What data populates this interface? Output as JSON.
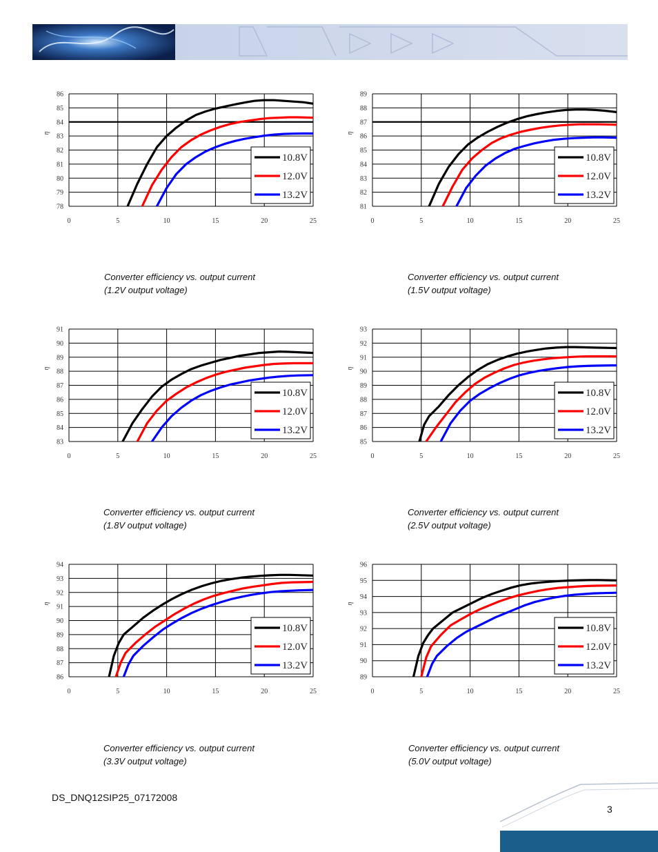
{
  "document": {
    "doc_id": "DS_DNQ12SIP25_07172008",
    "page_number": "3"
  },
  "colors": {
    "v108": "#000000",
    "v120": "#ff0000",
    "v132": "#0000ff",
    "brand": "#1a5e8c"
  },
  "chart_data": [
    {
      "type": "line",
      "title": "Converter efficiency vs. output current",
      "subtitle": "(1.2V output voltage)",
      "ylabel": "η",
      "xlabel": "",
      "xlim": [
        0,
        25
      ],
      "ylim": [
        78,
        86
      ],
      "xticks": [
        "0",
        "5",
        "10",
        "15",
        "20",
        "25"
      ],
      "yticks": [
        "78",
        "79",
        "80",
        "81",
        "82",
        "83",
        "84",
        "85",
        "86"
      ],
      "hline": 84,
      "series": [
        {
          "name": "10.8V",
          "x": [
            6,
            7,
            8,
            9,
            10,
            11,
            12,
            13,
            14,
            15,
            16,
            17,
            18,
            19,
            20,
            21,
            22,
            23,
            24,
            25
          ],
          "y": [
            78,
            79.6,
            81,
            82.2,
            83,
            83.6,
            84.1,
            84.5,
            84.75,
            84.95,
            85.1,
            85.25,
            85.38,
            85.5,
            85.55,
            85.55,
            85.5,
            85.45,
            85.4,
            85.3
          ]
        },
        {
          "name": "12.0V",
          "x": [
            7.5,
            8.5,
            9.5,
            10.5,
            11.5,
            12.5,
            13.5,
            14.5,
            15.5,
            16.5,
            17.5,
            18.5,
            19.5,
            20.5,
            21.5,
            22.5,
            23.5,
            25
          ],
          "y": [
            78,
            79.5,
            80.6,
            81.5,
            82.2,
            82.7,
            83.1,
            83.4,
            83.65,
            83.85,
            84,
            84.1,
            84.2,
            84.27,
            84.3,
            84.33,
            84.33,
            84.3
          ]
        },
        {
          "name": "13.2V",
          "x": [
            9,
            10,
            11,
            12,
            13,
            14,
            15,
            16,
            17,
            18,
            19,
            20,
            21,
            22,
            23,
            24,
            25
          ],
          "y": [
            78,
            79.3,
            80.3,
            81,
            81.5,
            81.9,
            82.2,
            82.45,
            82.65,
            82.8,
            82.92,
            83.02,
            83.1,
            83.15,
            83.17,
            83.18,
            83.18
          ]
        }
      ]
    },
    {
      "type": "line",
      "title": "Converter efficiency vs. output current",
      "subtitle": "(1.5V output voltage)",
      "ylabel": "η",
      "xlabel": "",
      "xlim": [
        0,
        25
      ],
      "ylim": [
        81,
        89
      ],
      "xticks": [
        "0",
        "5",
        "10",
        "15",
        "20",
        "25"
      ],
      "yticks": [
        "81",
        "82",
        "83",
        "84",
        "85",
        "86",
        "87",
        "88",
        "89"
      ],
      "hline": 87,
      "series": [
        {
          "name": "10.8V",
          "x": [
            5.8,
            6.8,
            7.8,
            8.8,
            9.8,
            10.8,
            11.8,
            12.8,
            13.8,
            14.8,
            15.8,
            16.8,
            17.8,
            18.8,
            19.8,
            20.8,
            21.8,
            22.8,
            23.8,
            25
          ],
          "y": [
            81,
            82.6,
            83.8,
            84.7,
            85.4,
            85.9,
            86.3,
            86.65,
            86.95,
            87.2,
            87.4,
            87.55,
            87.68,
            87.78,
            87.85,
            87.88,
            87.88,
            87.85,
            87.8,
            87.7
          ]
        },
        {
          "name": "12.0V",
          "x": [
            7.2,
            8.2,
            9.2,
            10.2,
            11.2,
            12.2,
            13.2,
            14.2,
            15.2,
            16.2,
            17.2,
            18.2,
            19.2,
            20.2,
            21.2,
            22.2,
            23.2,
            25
          ],
          "y": [
            81,
            82.4,
            83.6,
            84.4,
            85,
            85.5,
            85.85,
            86.1,
            86.3,
            86.45,
            86.58,
            86.68,
            86.75,
            86.8,
            86.83,
            86.83,
            86.83,
            86.8
          ]
        },
        {
          "name": "13.2V",
          "x": [
            8.6,
            9.6,
            10.6,
            11.6,
            12.6,
            13.6,
            14.6,
            15.6,
            16.6,
            17.6,
            18.6,
            19.6,
            20.6,
            21.6,
            22.6,
            23.6,
            25
          ],
          "y": [
            81,
            82.3,
            83.2,
            83.9,
            84.4,
            84.8,
            85.1,
            85.3,
            85.48,
            85.62,
            85.73,
            85.8,
            85.85,
            85.88,
            85.9,
            85.9,
            85.88
          ]
        }
      ]
    },
    {
      "type": "line",
      "title": "Converter efficiency vs. output current",
      "subtitle": "(1.8V output voltage)",
      "ylabel": "η",
      "xlabel": "",
      "xlim": [
        0,
        25
      ],
      "ylim": [
        83,
        91
      ],
      "xticks": [
        "0",
        "5",
        "10",
        "15",
        "20",
        "25"
      ],
      "yticks": [
        "83",
        "84",
        "85",
        "86",
        "87",
        "88",
        "89",
        "90",
        "91"
      ],
      "hline": null,
      "series": [
        {
          "name": "10.8V",
          "x": [
            5.5,
            6.5,
            7.5,
            8.5,
            9.5,
            10.5,
            11.5,
            12.5,
            13.5,
            14.5,
            15.5,
            16.5,
            17.5,
            18.5,
            19.5,
            20.5,
            21.5,
            22.5,
            23.5,
            25
          ],
          "y": [
            83,
            84.3,
            85.3,
            86.2,
            86.9,
            87.4,
            87.8,
            88.15,
            88.4,
            88.6,
            88.8,
            88.95,
            89.1,
            89.2,
            89.3,
            89.35,
            89.4,
            89.38,
            89.35,
            89.3
          ]
        },
        {
          "name": "12.0V",
          "x": [
            7,
            8,
            9,
            10,
            11,
            12,
            13,
            14,
            15,
            16,
            17,
            18,
            19,
            20,
            21,
            22,
            23,
            25
          ],
          "y": [
            83,
            84.3,
            85.2,
            85.9,
            86.4,
            86.85,
            87.2,
            87.5,
            87.75,
            87.95,
            88.1,
            88.25,
            88.35,
            88.45,
            88.52,
            88.55,
            88.57,
            88.57
          ]
        },
        {
          "name": "13.2V",
          "x": [
            8.5,
            9.5,
            10.5,
            11.5,
            12.5,
            13.5,
            14.5,
            15.5,
            16.5,
            17.5,
            18.5,
            19.5,
            20.5,
            21.5,
            22.5,
            23.5,
            25
          ],
          "y": [
            83,
            84,
            84.8,
            85.4,
            85.9,
            86.3,
            86.6,
            86.85,
            87.05,
            87.2,
            87.35,
            87.45,
            87.55,
            87.62,
            87.67,
            87.7,
            87.72
          ]
        }
      ]
    },
    {
      "type": "line",
      "title": "Converter efficiency vs. output current",
      "subtitle": "(2.5V output voltage)",
      "ylabel": "η",
      "xlabel": "",
      "xlim": [
        0,
        25
      ],
      "ylim": [
        85,
        93
      ],
      "xticks": [
        "0",
        "5",
        "10",
        "15",
        "20",
        "25"
      ],
      "yticks": [
        "85",
        "86",
        "87",
        "88",
        "89",
        "90",
        "91",
        "92",
        "93"
      ],
      "hline": null,
      "series": [
        {
          "name": "10.8V",
          "x": [
            4.8,
            5.3,
            5.8,
            6.8,
            7.8,
            8.8,
            9.8,
            10.8,
            11.8,
            12.8,
            13.8,
            14.8,
            15.8,
            16.8,
            17.8,
            18.8,
            19.8,
            20.8,
            21.8,
            22.8,
            25
          ],
          "y": [
            85,
            86.2,
            86.8,
            87.5,
            88.3,
            89,
            89.6,
            90.1,
            90.5,
            90.8,
            91.05,
            91.25,
            91.4,
            91.52,
            91.62,
            91.68,
            91.72,
            91.72,
            91.7,
            91.68,
            91.65
          ]
        },
        {
          "name": "12.0V",
          "x": [
            5.5,
            6.5,
            7.5,
            8.5,
            9.5,
            10.5,
            11.5,
            12.5,
            13.5,
            14.5,
            15.5,
            16.5,
            17.5,
            18.5,
            19.5,
            20.5,
            21.5,
            22.5,
            23.5,
            25
          ],
          "y": [
            85,
            86,
            86.9,
            87.8,
            88.5,
            89.1,
            89.55,
            89.9,
            90.2,
            90.45,
            90.62,
            90.75,
            90.85,
            90.93,
            90.98,
            91.02,
            91.05,
            91.06,
            91.06,
            91.05
          ]
        },
        {
          "name": "13.2V",
          "x": [
            7,
            8,
            9,
            10,
            11,
            12,
            13,
            14,
            15,
            16,
            17,
            18,
            19,
            20,
            21,
            22,
            23,
            25
          ],
          "y": [
            85,
            86.3,
            87.2,
            87.9,
            88.4,
            88.8,
            89.15,
            89.45,
            89.7,
            89.88,
            90.02,
            90.13,
            90.22,
            90.3,
            90.35,
            90.38,
            90.4,
            90.42
          ]
        }
      ]
    },
    {
      "type": "line",
      "title": "Converter efficiency vs. output current",
      "subtitle": "(3.3V output voltage)",
      "ylabel": "η",
      "xlabel": "",
      "xlim": [
        0,
        25
      ],
      "ylim": [
        86,
        94
      ],
      "xticks": [
        "0",
        "5",
        "10",
        "15",
        "20",
        "25"
      ],
      "yticks": [
        "86",
        "87",
        "88",
        "89",
        "90",
        "91",
        "92",
        "93",
        "94"
      ],
      "hline": null,
      "series": [
        {
          "name": "10.8V",
          "x": [
            4.1,
            4.6,
            5.1,
            5.6,
            6.6,
            7.6,
            8.6,
            9.6,
            10.6,
            11.6,
            12.6,
            13.6,
            14.6,
            15.6,
            16.6,
            17.6,
            18.6,
            19.6,
            20.6,
            21.6,
            22.6,
            25
          ],
          "y": [
            86,
            87.5,
            88.4,
            89,
            89.6,
            90.2,
            90.7,
            91.15,
            91.55,
            91.9,
            92.2,
            92.45,
            92.65,
            92.82,
            92.95,
            93.05,
            93.12,
            93.18,
            93.22,
            93.25,
            93.25,
            93.2
          ]
        },
        {
          "name": "12.0V",
          "x": [
            4.8,
            5.3,
            5.8,
            6.8,
            7.8,
            8.8,
            9.8,
            10.8,
            11.8,
            12.8,
            13.8,
            14.8,
            15.8,
            16.8,
            17.8,
            18.8,
            19.8,
            20.8,
            21.8,
            22.8,
            25
          ],
          "y": [
            86,
            87,
            87.7,
            88.4,
            89,
            89.55,
            90,
            90.45,
            90.85,
            91.2,
            91.5,
            91.75,
            91.95,
            92.12,
            92.28,
            92.4,
            92.5,
            92.6,
            92.68,
            92.72,
            92.75
          ]
        },
        {
          "name": "13.2V",
          "x": [
            5.6,
            6.1,
            6.6,
            7.6,
            8.6,
            9.6,
            10.6,
            11.6,
            12.6,
            13.6,
            14.6,
            15.6,
            16.6,
            17.6,
            18.6,
            19.6,
            20.6,
            21.6,
            22.6,
            23.6,
            25
          ],
          "y": [
            86,
            86.9,
            87.5,
            88.2,
            88.8,
            89.35,
            89.8,
            90.2,
            90.55,
            90.85,
            91.1,
            91.32,
            91.52,
            91.68,
            91.82,
            91.93,
            92.02,
            92.08,
            92.12,
            92.15,
            92.18
          ]
        }
      ]
    },
    {
      "type": "line",
      "title": "Converter efficiency vs. output current",
      "subtitle": "(5.0V output voltage)",
      "ylabel": "η",
      "xlabel": "",
      "xlim": [
        0,
        25
      ],
      "ylim": [
        89,
        96
      ],
      "xticks": [
        "0",
        "5",
        "10",
        "15",
        "20",
        "25"
      ],
      "yticks": [
        "89",
        "90",
        "91",
        "92",
        "93",
        "94",
        "95",
        "96"
      ],
      "hline": null,
      "series": [
        {
          "name": "10.8V",
          "x": [
            4.2,
            4.7,
            5.2,
            5.7,
            6.2,
            7.2,
            8.2,
            9.2,
            10.2,
            11.2,
            12.2,
            13.2,
            14.2,
            15.2,
            16.2,
            17.2,
            18.2,
            19.2,
            20.2,
            21.2,
            22.2,
            23.2,
            25
          ],
          "y": [
            89,
            90.3,
            91.1,
            91.6,
            92,
            92.5,
            93,
            93.3,
            93.6,
            93.9,
            94.15,
            94.35,
            94.55,
            94.7,
            94.8,
            94.87,
            94.92,
            94.96,
            94.99,
            95.01,
            95.02,
            95.02,
            95
          ]
        },
        {
          "name": "12.0V",
          "x": [
            5,
            5.5,
            6,
            7,
            8,
            9,
            10,
            11,
            12,
            13,
            14,
            15,
            16,
            17,
            18,
            19,
            20,
            21,
            22,
            23,
            25
          ],
          "y": [
            89,
            90.2,
            90.9,
            91.6,
            92.2,
            92.55,
            92.9,
            93.2,
            93.45,
            93.7,
            93.9,
            94.08,
            94.22,
            94.35,
            94.45,
            94.53,
            94.58,
            94.62,
            94.65,
            94.67,
            94.68
          ]
        },
        {
          "name": "13.2V",
          "x": [
            5.6,
            6.1,
            6.6,
            7.6,
            8.6,
            9.6,
            10.6,
            11.6,
            12.6,
            13.6,
            14.6,
            15.6,
            16.6,
            17.6,
            18.6,
            19.6,
            20.6,
            21.6,
            22.6,
            23.6,
            25
          ],
          "y": [
            89,
            89.8,
            90.3,
            90.9,
            91.4,
            91.8,
            92.1,
            92.4,
            92.7,
            92.95,
            93.2,
            93.45,
            93.65,
            93.8,
            93.93,
            94.03,
            94.1,
            94.15,
            94.19,
            94.21,
            94.23
          ]
        }
      ]
    }
  ]
}
